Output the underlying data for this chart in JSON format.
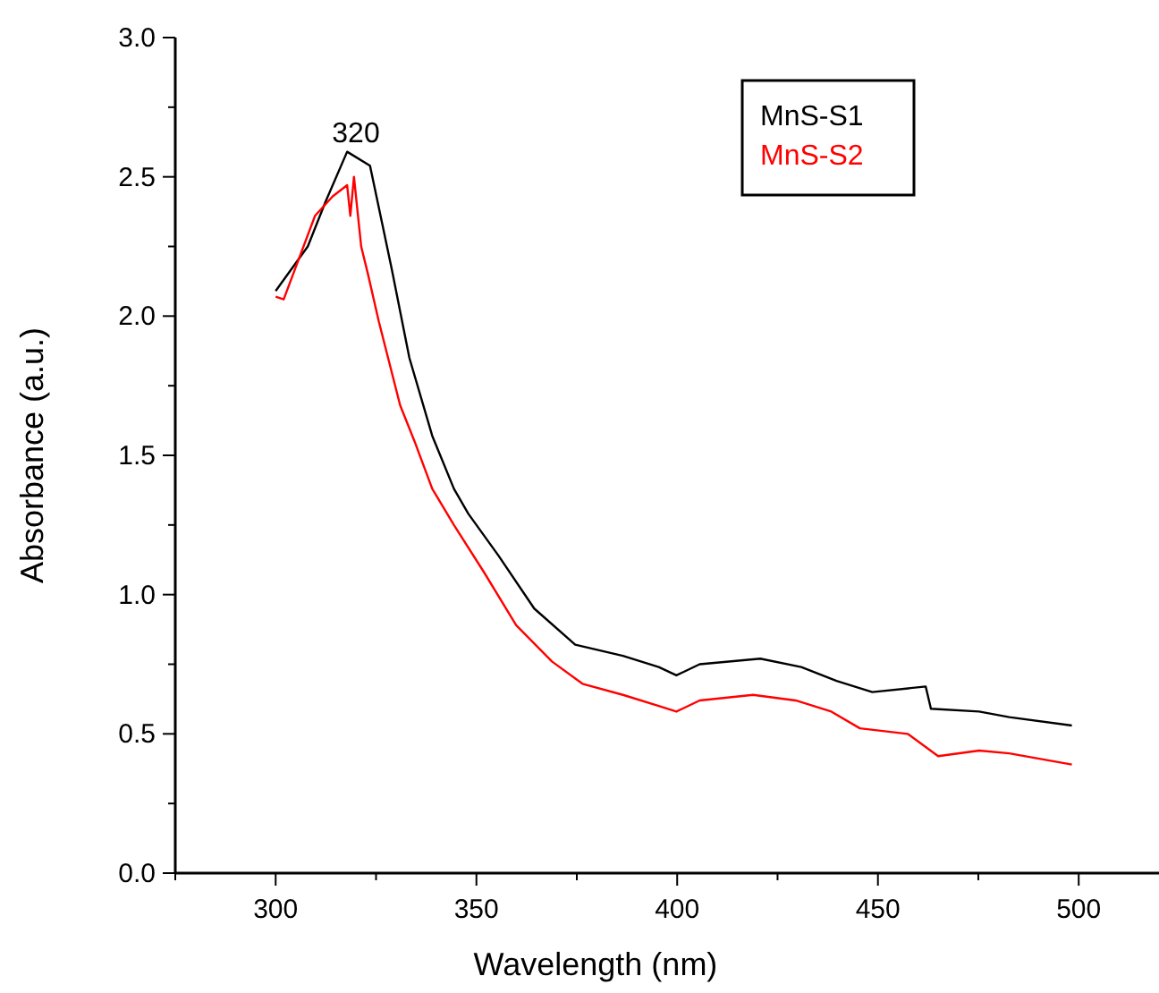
{
  "chart_data": {
    "type": "line",
    "xlabel": "Wavelength (nm)",
    "ylabel": "Absorbance (a.u.)",
    "xlim": [
      275,
      520
    ],
    "xticks": [
      {
        "value": 275,
        "label": null
      },
      300,
      {
        "value": 325,
        "label": null
      },
      350,
      {
        "value": 375,
        "label": null
      },
      400,
      {
        "value": 425,
        "label": null
      },
      450,
      {
        "value": 475,
        "label": null
      },
      500
    ],
    "ylim": [
      0,
      3
    ],
    "yticks": [
      {
        "value": 0,
        "label": "0.0"
      },
      {
        "value": 0.25,
        "label": null
      },
      {
        "value": 0.5,
        "label": "0.5"
      },
      {
        "value": 0.75,
        "label": null
      },
      {
        "value": 1,
        "label": "1.0"
      },
      {
        "value": 1.25,
        "label": null
      },
      {
        "value": 1.5,
        "label": "1.5"
      },
      {
        "value": 1.75,
        "label": null
      },
      {
        "value": 2,
        "label": "2.0"
      },
      {
        "value": 2.25,
        "label": null
      },
      {
        "value": 2.5,
        "label": "2.5"
      },
      {
        "value": 2.75,
        "label": null
      },
      {
        "value": 3,
        "label": "3.0"
      }
    ],
    "grid": false,
    "legend": "top right",
    "line_style": "solid",
    "annotations": [
      {
        "text": "320",
        "x": 320,
        "y": 2.6
      }
    ],
    "series": [
      {
        "name": "MnS-S1",
        "color": "#000000",
        "x": [
          300,
          308,
          312.4,
          317.8,
          323.5,
          328.9,
          333.3,
          339,
          344.4,
          348,
          355.5,
          364.4,
          374.6,
          386.5,
          395.4,
          399.8,
          405.6,
          420.7,
          430.9,
          439.7,
          448.6,
          461.9,
          463.2,
          475.2,
          482.7,
          498.3
        ],
        "values": [
          2.09,
          2.25,
          2.41,
          2.59,
          2.54,
          2.17,
          1.85,
          1.57,
          1.38,
          1.29,
          1.14,
          0.95,
          0.82,
          0.78,
          0.74,
          0.71,
          0.75,
          0.77,
          0.74,
          0.69,
          0.65,
          0.67,
          0.59,
          0.58,
          0.56,
          0.53
        ]
      },
      {
        "name": "MnS-S2",
        "color": "#ff0000",
        "x": [
          300,
          302,
          309.8,
          314.2,
          317.8,
          318.6,
          319.5,
          321.3,
          323,
          325.7,
          331,
          334.6,
          339,
          344.4,
          351.9,
          359.9,
          368.8,
          376.4,
          386.5,
          395.4,
          399.8,
          405.6,
          418.9,
          429.5,
          438.4,
          445.5,
          457.4,
          465,
          475.2,
          482.7,
          498.3
        ],
        "values": [
          2.07,
          2.06,
          2.36,
          2.43,
          2.47,
          2.36,
          2.5,
          2.25,
          2.15,
          1.98,
          1.68,
          1.55,
          1.38,
          1.25,
          1.08,
          0.89,
          0.76,
          0.68,
          0.64,
          0.6,
          0.58,
          0.62,
          0.64,
          0.62,
          0.58,
          0.52,
          0.5,
          0.42,
          0.44,
          0.43,
          0.39
        ]
      }
    ]
  }
}
